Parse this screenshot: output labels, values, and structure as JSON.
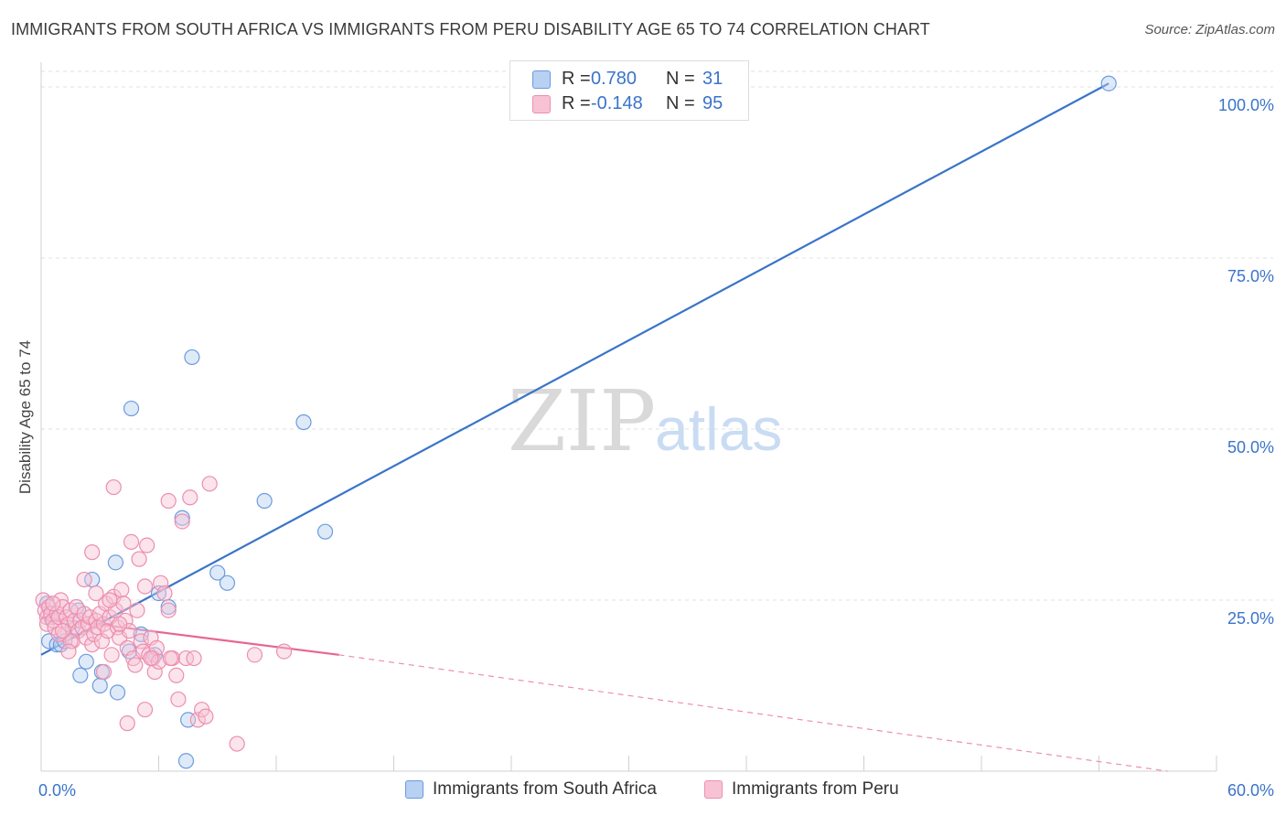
{
  "title": "IMMIGRANTS FROM SOUTH AFRICA VS IMMIGRANTS FROM PERU DISABILITY AGE 65 TO 74 CORRELATION CHART",
  "source": "Source: ZipAtlas.com",
  "watermark": {
    "zip": "ZIP",
    "atlas": "atlas"
  },
  "legend": {
    "r_label": "R =",
    "n_label": "N =",
    "rows": [
      {
        "r": "0.780",
        "n": "31",
        "color": "#b8d0f2",
        "border": "#6a9be0"
      },
      {
        "r": "-0.148",
        "n": "95",
        "color": "#f7c3d4",
        "border": "#ec8fae"
      }
    ]
  },
  "bottom_legend": [
    {
      "label": "Immigrants from South Africa",
      "color": "#b8d0f2",
      "border": "#6a9be0"
    },
    {
      "label": "Immigrants from Peru",
      "color": "#f7c3d4",
      "border": "#ec8fae"
    }
  ],
  "chart_data": {
    "type": "scatter",
    "title": "IMMIGRANTS FROM SOUTH AFRICA VS IMMIGRANTS FROM PERU DISABILITY AGE 65 TO 74 CORRELATION CHART",
    "xlabel": "",
    "ylabel": "Disability Age 65 to 74",
    "xlim": [
      0,
      60
    ],
    "ylim": [
      0,
      102
    ],
    "x_tick_labels": [
      "0.0%",
      "60.0%"
    ],
    "y_ticks": [
      25,
      50,
      75,
      100
    ],
    "y_tick_labels": [
      "25.0%",
      "50.0%",
      "75.0%",
      "100.0%"
    ],
    "grid": true,
    "series": [
      {
        "name": "Immigrants from South Africa",
        "color": "#6a9be0",
        "fill": "rgba(184,208,242,0.45)",
        "points": [
          [
            0.3,
            24.5
          ],
          [
            0.5,
            22.5
          ],
          [
            0.4,
            19.0
          ],
          [
            0.8,
            18.5
          ],
          [
            1.0,
            18.5
          ],
          [
            1.2,
            19.0
          ],
          [
            1.6,
            21.0
          ],
          [
            1.9,
            23.5
          ],
          [
            2.3,
            16.0
          ],
          [
            2.0,
            14.0
          ],
          [
            2.6,
            28.0
          ],
          [
            3.1,
            14.5
          ],
          [
            3.0,
            12.5
          ],
          [
            3.8,
            30.5
          ],
          [
            3.9,
            11.5
          ],
          [
            4.5,
            17.5
          ],
          [
            4.6,
            53.0
          ],
          [
            5.1,
            20.0
          ],
          [
            5.8,
            17.0
          ],
          [
            6.0,
            26.0
          ],
          [
            6.5,
            24.0
          ],
          [
            7.2,
            37.0
          ],
          [
            7.7,
            60.5
          ],
          [
            7.5,
            7.5
          ],
          [
            7.4,
            1.5
          ],
          [
            9.0,
            29.0
          ],
          [
            9.5,
            27.5
          ],
          [
            11.4,
            39.5
          ],
          [
            13.4,
            51.0
          ],
          [
            14.5,
            35.0
          ],
          [
            54.5,
            100.5
          ]
        ],
        "trend": {
          "x": [
            0,
            54.5
          ],
          "y": [
            17.0,
            100.5
          ]
        }
      },
      {
        "name": "Immigrants from Peru",
        "color": "#ec8fae",
        "fill": "rgba(247,195,212,0.45)",
        "points": [
          [
            0.1,
            25.0
          ],
          [
            0.2,
            23.5
          ],
          [
            0.3,
            22.5
          ],
          [
            0.3,
            21.5
          ],
          [
            0.4,
            24.0
          ],
          [
            0.5,
            23.0
          ],
          [
            0.6,
            22.0
          ],
          [
            0.7,
            21.0
          ],
          [
            0.8,
            23.0
          ],
          [
            0.9,
            22.5
          ],
          [
            1.0,
            25.0
          ],
          [
            1.1,
            24.0
          ],
          [
            1.2,
            20.0
          ],
          [
            1.3,
            22.5
          ],
          [
            1.4,
            21.5
          ],
          [
            1.5,
            23.5
          ],
          [
            1.6,
            19.0
          ],
          [
            1.7,
            22.0
          ],
          [
            1.8,
            24.0
          ],
          [
            1.9,
            20.5
          ],
          [
            2.0,
            22.0
          ],
          [
            2.1,
            21.0
          ],
          [
            2.2,
            23.0
          ],
          [
            2.3,
            19.5
          ],
          [
            2.4,
            21.5
          ],
          [
            2.5,
            22.5
          ],
          [
            2.6,
            18.5
          ],
          [
            2.7,
            20.0
          ],
          [
            2.8,
            22.0
          ],
          [
            2.9,
            21.0
          ],
          [
            3.0,
            23.0
          ],
          [
            3.1,
            19.0
          ],
          [
            3.2,
            21.5
          ],
          [
            3.3,
            24.5
          ],
          [
            3.4,
            20.5
          ],
          [
            3.5,
            22.5
          ],
          [
            3.6,
            17.0
          ],
          [
            3.7,
            25.5
          ],
          [
            3.8,
            23.5
          ],
          [
            3.9,
            21.0
          ],
          [
            4.0,
            19.5
          ],
          [
            4.1,
            26.5
          ],
          [
            4.2,
            24.5
          ],
          [
            4.3,
            22.0
          ],
          [
            4.4,
            18.0
          ],
          [
            4.5,
            20.5
          ],
          [
            4.6,
            33.5
          ],
          [
            4.7,
            16.5
          ],
          [
            4.8,
            15.5
          ],
          [
            4.9,
            23.5
          ],
          [
            5.0,
            31.0
          ],
          [
            5.1,
            19.0
          ],
          [
            5.2,
            17.5
          ],
          [
            5.3,
            27.0
          ],
          [
            5.4,
            33.0
          ],
          [
            5.5,
            17.0
          ],
          [
            5.6,
            19.5
          ],
          [
            5.7,
            16.5
          ],
          [
            5.8,
            14.5
          ],
          [
            5.9,
            18.0
          ],
          [
            6.0,
            16.0
          ],
          [
            6.1,
            27.5
          ],
          [
            6.3,
            26.0
          ],
          [
            6.5,
            23.5
          ],
          [
            6.7,
            16.5
          ],
          [
            6.9,
            14.0
          ],
          [
            7.0,
            10.5
          ],
          [
            7.2,
            36.5
          ],
          [
            7.4,
            16.5
          ],
          [
            7.6,
            40.0
          ],
          [
            7.8,
            16.5
          ],
          [
            8.0,
            7.5
          ],
          [
            8.2,
            9.0
          ],
          [
            8.4,
            8.0
          ],
          [
            8.6,
            42.0
          ],
          [
            2.6,
            32.0
          ],
          [
            3.2,
            14.5
          ],
          [
            3.7,
            41.5
          ],
          [
            4.4,
            7.0
          ],
          [
            5.3,
            9.0
          ],
          [
            5.6,
            16.5
          ],
          [
            6.6,
            16.5
          ],
          [
            10.0,
            4.0
          ],
          [
            10.9,
            17.0
          ],
          [
            12.4,
            17.5
          ],
          [
            2.2,
            28.0
          ],
          [
            1.5,
            19.0
          ],
          [
            0.9,
            20.0
          ],
          [
            1.4,
            17.5
          ],
          [
            2.8,
            26.0
          ],
          [
            3.5,
            25.0
          ],
          [
            4.0,
            21.5
          ],
          [
            6.5,
            39.5
          ],
          [
            1.1,
            20.5
          ],
          [
            0.6,
            24.5
          ]
        ],
        "trend": {
          "x": [
            0,
            15.2
          ],
          "y": [
            22.5,
            17.0
          ]
        },
        "trend_dashed": {
          "x": [
            15.2,
            57.5
          ],
          "y": [
            17.0,
            0
          ]
        }
      }
    ]
  }
}
